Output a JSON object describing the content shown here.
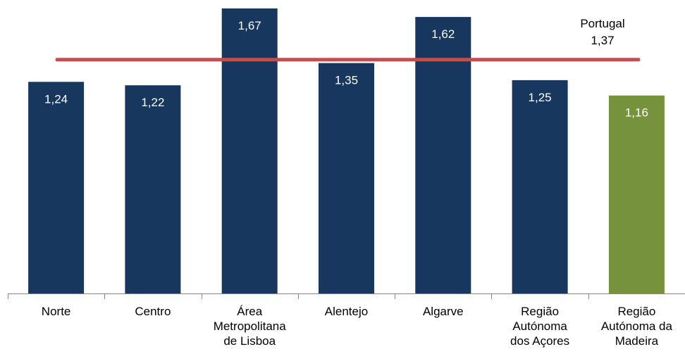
{
  "chart_data": {
    "type": "bar",
    "title": "",
    "xlabel": "",
    "ylabel": "",
    "ylim": [
      0,
      1.74
    ],
    "grid": false,
    "categories": [
      [
        "Norte"
      ],
      [
        "Centro"
      ],
      [
        "Área",
        "Metropolitana",
        "de Lisboa"
      ],
      [
        "Alentejo"
      ],
      [
        "Algarve"
      ],
      [
        "Região",
        "Autónoma",
        "dos Açores"
      ],
      [
        "Região",
        "Autónoma da",
        "Madeira"
      ]
    ],
    "values": [
      1.24,
      1.22,
      1.67,
      1.35,
      1.62,
      1.25,
      1.16
    ],
    "value_labels": [
      "1,24",
      "1,22",
      "1,67",
      "1,35",
      "1,62",
      "1,25",
      "1,16"
    ],
    "bar_colors": [
      "#17375e",
      "#17375e",
      "#17375e",
      "#17375e",
      "#17375e",
      "#17375e",
      "#76923c"
    ],
    "reference_line": {
      "value": 1.37,
      "label_name": "Portugal",
      "label_value": "1,37",
      "color": "#c0504d"
    }
  }
}
